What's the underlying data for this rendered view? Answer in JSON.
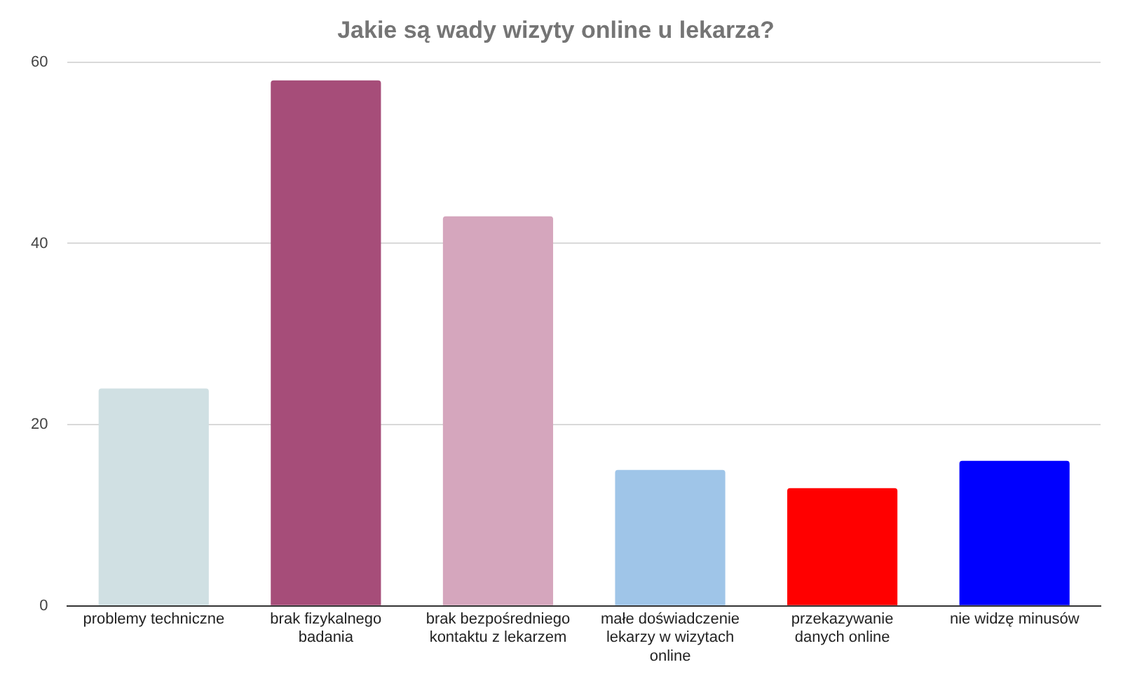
{
  "chart_data": {
    "type": "bar",
    "title": "Jakie są wady wizyty online u lekarza?",
    "categories": [
      "problemy techniczne",
      "brak fizykalnego badania",
      "brak bezpośredniego kontaktu z lekarzem",
      "małe doświadczenie lekarzy w wizytach online",
      "przekazywanie danych online",
      "nie widzę minusów"
    ],
    "values": [
      24,
      58,
      43,
      15,
      13,
      16
    ],
    "colors": [
      "#d0e0e3",
      "#a64d79",
      "#d5a6bd",
      "#9fc5e8",
      "#ff0000",
      "#0000ff"
    ],
    "ylim": [
      0,
      60
    ],
    "yticks": [
      0,
      20,
      40,
      60
    ],
    "grid": "y",
    "legend": false
  }
}
